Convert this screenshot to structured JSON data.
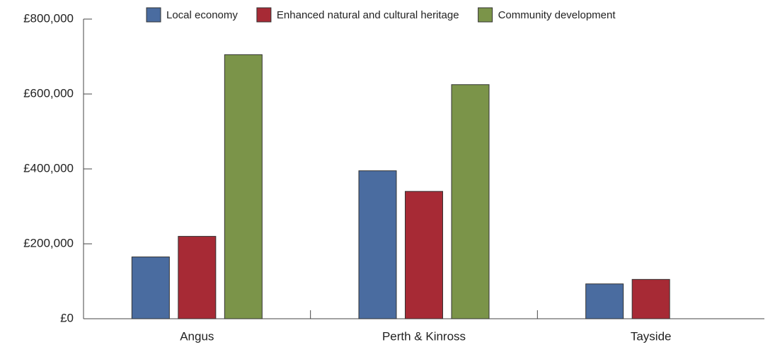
{
  "chart_data": {
    "type": "bar",
    "categories": [
      "Angus",
      "Perth & Kinross",
      "Tayside"
    ],
    "series": [
      {
        "name": "Local economy",
        "color": "#4a6ca0",
        "values": [
          165000,
          395000,
          93000
        ]
      },
      {
        "name": "Enhanced natural and cultural heritage",
        "color": "#a72a35",
        "values": [
          220000,
          340000,
          105000
        ]
      },
      {
        "name": "Community development",
        "color": "#7b9449",
        "values": [
          705000,
          625000,
          0
        ]
      }
    ],
    "ylim": [
      0,
      800000
    ],
    "yticks": [
      {
        "value": 0,
        "label": "£0"
      },
      {
        "value": 200000,
        "label": "£200,000"
      },
      {
        "value": 400000,
        "label": "£400,000"
      },
      {
        "value": 600000,
        "label": "£600,000"
      },
      {
        "value": 800000,
        "label": "£800,000"
      }
    ],
    "legend": "top"
  }
}
